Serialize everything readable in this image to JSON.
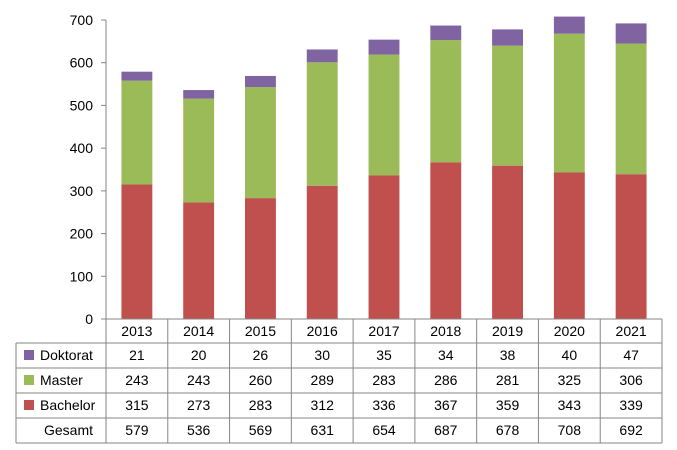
{
  "chart_data": {
    "type": "bar",
    "stacked": true,
    "categories": [
      "2013",
      "2014",
      "2015",
      "2016",
      "2017",
      "2018",
      "2019",
      "2020",
      "2021"
    ],
    "series": [
      {
        "name": "Bachelor",
        "color": "#c0504d",
        "values": [
          315,
          273,
          283,
          312,
          336,
          367,
          359,
          343,
          339
        ]
      },
      {
        "name": "Master",
        "color": "#9bbb59",
        "values": [
          243,
          243,
          260,
          289,
          283,
          286,
          281,
          325,
          306
        ]
      },
      {
        "name": "Doktorat",
        "color": "#8064a2",
        "values": [
          21,
          20,
          26,
          30,
          35,
          34,
          38,
          40,
          47
        ]
      }
    ],
    "totals_label": "Gesamt",
    "totals": [
      579,
      536,
      569,
      631,
      654,
      687,
      678,
      708,
      692
    ],
    "table_row_order": [
      "Doktorat",
      "Master",
      "Bachelor"
    ],
    "ylim": [
      0,
      700
    ],
    "yticks": [
      0,
      100,
      200,
      300,
      400,
      500,
      600,
      700
    ],
    "grid": false,
    "data_table": true,
    "title": "",
    "xlabel": "",
    "ylabel": ""
  }
}
